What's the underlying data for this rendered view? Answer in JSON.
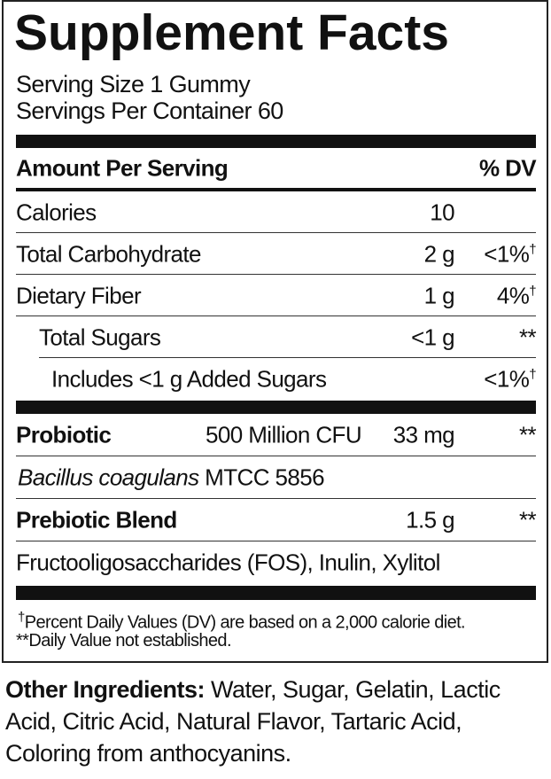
{
  "title": "Supplement Facts",
  "serving_size": "Serving Size 1 Gummy",
  "servings_per_container": "Servings Per Container 60",
  "header": {
    "amount": "Amount Per Serving",
    "dv": "% DV"
  },
  "rows": [
    {
      "name": "Calories",
      "amount": "10",
      "dv": ""
    },
    {
      "name": "Total Carbohydrate",
      "amount": "2 g",
      "dv": "<1%",
      "mark": "†"
    },
    {
      "name": "Dietary Fiber",
      "amount": "1 g",
      "dv": "4%",
      "mark": "†"
    },
    {
      "name": "Total Sugars",
      "amount": "<1 g",
      "dv": "**"
    },
    {
      "name": "Includes <1 g Added Sugars",
      "amount": "",
      "dv": "<1%",
      "mark": "†"
    }
  ],
  "probiotic": {
    "name": "Probiotic",
    "cfu": "500 Million CFU",
    "amount": "33 mg",
    "dv": "**",
    "strain_italic": "Bacillus coagulans",
    "strain_rest": " MTCC 5856"
  },
  "prebiotic": {
    "name": "Prebiotic Blend",
    "amount": "1.5 g",
    "dv": "**",
    "ingredients": "Fructooligosaccharides (FOS), Inulin, Xylitol"
  },
  "footnotes": {
    "dagger": "†",
    "dv_note": "Percent Daily Values (DV) are based on a 2,000 calorie diet.",
    "na_note": "**Daily Value not established."
  },
  "other": {
    "label": "Other Ingredients:",
    "text": " Water, Sugar, Gelatin, Lactic Acid, Citric Acid, Natural Flavor, Tartaric Acid, Coloring from anthocyanins."
  }
}
